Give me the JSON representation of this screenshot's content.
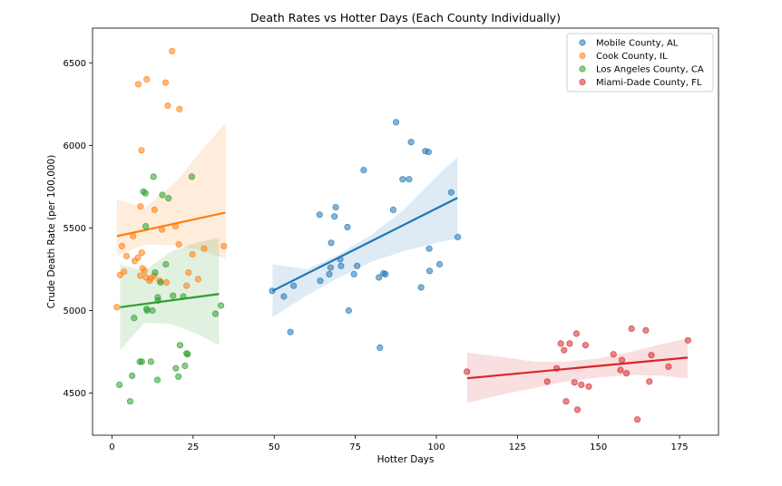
{
  "chart_data": {
    "type": "scatter",
    "title": "Death Rates vs Hotter Days (Each County Individually)",
    "xlabel": "Hotter Days",
    "ylabel": "Crude Death Rate (per 100,000)",
    "xlim": [
      -6,
      187
    ],
    "ylim": [
      4245,
      6710
    ],
    "xticks": [
      0,
      25,
      50,
      75,
      100,
      125,
      150,
      175
    ],
    "yticks": [
      4500,
      5000,
      5500,
      6000,
      6500
    ],
    "legend_position": "top-right",
    "series": [
      {
        "name": "Mobile County, AL",
        "color": "#1f77b4",
        "points": [
          [
            49.4,
            5119
          ],
          [
            53,
            5085
          ],
          [
            55,
            4870
          ],
          [
            56,
            5150
          ],
          [
            64,
            5580
          ],
          [
            64.2,
            5180
          ],
          [
            67,
            5220
          ],
          [
            67.4,
            5260
          ],
          [
            67.6,
            5410
          ],
          [
            68.6,
            5570
          ],
          [
            69,
            5625
          ],
          [
            70.4,
            5310
          ],
          [
            70.6,
            5270
          ],
          [
            72.6,
            5505
          ],
          [
            73,
            5000
          ],
          [
            74.6,
            5220
          ],
          [
            75.6,
            5270
          ],
          [
            77.6,
            5850
          ],
          [
            82.3,
            5200
          ],
          [
            82.6,
            4775
          ],
          [
            83.7,
            5225
          ],
          [
            84.3,
            5220
          ],
          [
            86.7,
            5610
          ],
          [
            87.6,
            6140
          ],
          [
            89.6,
            5795
          ],
          [
            91.6,
            5795
          ],
          [
            92.2,
            6020
          ],
          [
            95.3,
            5140
          ],
          [
            96.6,
            5965
          ],
          [
            97.6,
            5960
          ],
          [
            97.9,
            5240
          ],
          [
            97.8,
            5375
          ],
          [
            101,
            5280
          ],
          [
            104.6,
            5715
          ],
          [
            106.6,
            5445
          ]
        ],
        "fit": {
          "x": [
            49.5,
            106.5
          ],
          "y": [
            5119,
            5682
          ]
        },
        "band": {
          "x": [
            49.5,
            60,
            70,
            80,
            90,
            100,
            106.5
          ],
          "lower": [
            4960,
            5090,
            5200,
            5295,
            5360,
            5410,
            5435
          ],
          "upper": [
            5280,
            5250,
            5340,
            5460,
            5610,
            5810,
            5930
          ]
        }
      },
      {
        "name": "Cook County, IL",
        "color": "#ff7f0e",
        "points": [
          [
            1.5,
            5020
          ],
          [
            2.5,
            5215
          ],
          [
            3.1,
            5390
          ],
          [
            3.7,
            5235
          ],
          [
            4.5,
            5330
          ],
          [
            6.5,
            5450
          ],
          [
            7,
            5300
          ],
          [
            8,
            5320
          ],
          [
            8.7,
            5210
          ],
          [
            8.1,
            6370
          ],
          [
            8.8,
            5630
          ],
          [
            9.1,
            5970
          ],
          [
            9.2,
            5350
          ],
          [
            9.4,
            5255
          ],
          [
            10,
            5240
          ],
          [
            10.5,
            5200
          ],
          [
            10.7,
            6400
          ],
          [
            11.6,
            5180
          ],
          [
            12,
            5195
          ],
          [
            13,
            5210
          ],
          [
            13.1,
            5610
          ],
          [
            14.7,
            5180
          ],
          [
            15.4,
            5490
          ],
          [
            16.5,
            6380
          ],
          [
            16.8,
            5170
          ],
          [
            17.2,
            6240
          ],
          [
            18.5,
            6570
          ],
          [
            19.6,
            5510
          ],
          [
            20.6,
            5400
          ],
          [
            20.8,
            6220
          ],
          [
            23,
            5150
          ],
          [
            23.6,
            5230
          ],
          [
            24.8,
            5340
          ],
          [
            26.6,
            5190
          ],
          [
            28.4,
            5375
          ],
          [
            34.5,
            5390
          ]
        ],
        "fit": {
          "x": [
            1.5,
            35
          ],
          "y": [
            5450,
            5593
          ]
        },
        "band": {
          "x": [
            1.5,
            10,
            20,
            28,
            35
          ],
          "lower": [
            5330,
            5400,
            5395,
            5360,
            5315
          ],
          "upper": [
            5675,
            5620,
            5785,
            5980,
            6135
          ]
        }
      },
      {
        "name": "Los Angeles County, CA",
        "color": "#2ca02c",
        "points": [
          [
            2.3,
            4550
          ],
          [
            5.6,
            4450
          ],
          [
            6.2,
            4605
          ],
          [
            6.8,
            4955
          ],
          [
            8.6,
            4690
          ],
          [
            9.2,
            4690
          ],
          [
            9.7,
            5720
          ],
          [
            10.3,
            5710
          ],
          [
            10.4,
            5510
          ],
          [
            10.7,
            5010
          ],
          [
            10.8,
            5000
          ],
          [
            12,
            4690
          ],
          [
            12.5,
            5000
          ],
          [
            12.8,
            5810
          ],
          [
            13.3,
            5230
          ],
          [
            14,
            4580
          ],
          [
            14.1,
            5080
          ],
          [
            14.2,
            5060
          ],
          [
            15,
            5170
          ],
          [
            15.5,
            5700
          ],
          [
            16.6,
            5280
          ],
          [
            17.4,
            5680
          ],
          [
            18.8,
            5090
          ],
          [
            19.7,
            4650
          ],
          [
            20.5,
            4600
          ],
          [
            21,
            4790
          ],
          [
            22,
            5085
          ],
          [
            22.5,
            4665
          ],
          [
            23,
            4740
          ],
          [
            23.3,
            4735
          ],
          [
            24.6,
            5810
          ],
          [
            31.9,
            4980
          ],
          [
            33.6,
            5030
          ]
        ],
        "fit": {
          "x": [
            2.5,
            33
          ],
          "y": [
            5020,
            5100
          ]
        },
        "band": {
          "x": [
            2.5,
            10,
            18,
            26,
            33
          ],
          "lower": [
            4760,
            4925,
            4920,
            4860,
            4790
          ],
          "upper": [
            5280,
            5240,
            5355,
            5410,
            5440
          ]
        }
      },
      {
        "name": "Miami-Dade County, FL",
        "color": "#d62728",
        "points": [
          [
            109.4,
            4630
          ],
          [
            134.2,
            4570
          ],
          [
            137.1,
            4650
          ],
          [
            138.4,
            4800
          ],
          [
            139.4,
            4760
          ],
          [
            140,
            4450
          ],
          [
            141.1,
            4800
          ],
          [
            142.6,
            4565
          ],
          [
            143.2,
            4860
          ],
          [
            143.5,
            4400
          ],
          [
            144.7,
            4550
          ],
          [
            146,
            4790
          ],
          [
            147,
            4540
          ],
          [
            154.6,
            4735
          ],
          [
            156.8,
            4640
          ],
          [
            157.2,
            4700
          ],
          [
            158.6,
            4620
          ],
          [
            160.2,
            4890
          ],
          [
            162,
            4340
          ],
          [
            164.6,
            4880
          ],
          [
            165.7,
            4570
          ],
          [
            166.3,
            4730
          ],
          [
            171.6,
            4660
          ],
          [
            177.6,
            4820
          ]
        ],
        "fit": {
          "x": [
            109.5,
            177.5
          ],
          "y": [
            4590,
            4715
          ]
        },
        "band": {
          "x": [
            109.5,
            120,
            130,
            140,
            150,
            160,
            170,
            177.5
          ],
          "lower": [
            4440,
            4490,
            4530,
            4570,
            4595,
            4610,
            4605,
            4590
          ],
          "upper": [
            4745,
            4720,
            4690,
            4690,
            4710,
            4750,
            4800,
            4830
          ]
        }
      }
    ]
  }
}
